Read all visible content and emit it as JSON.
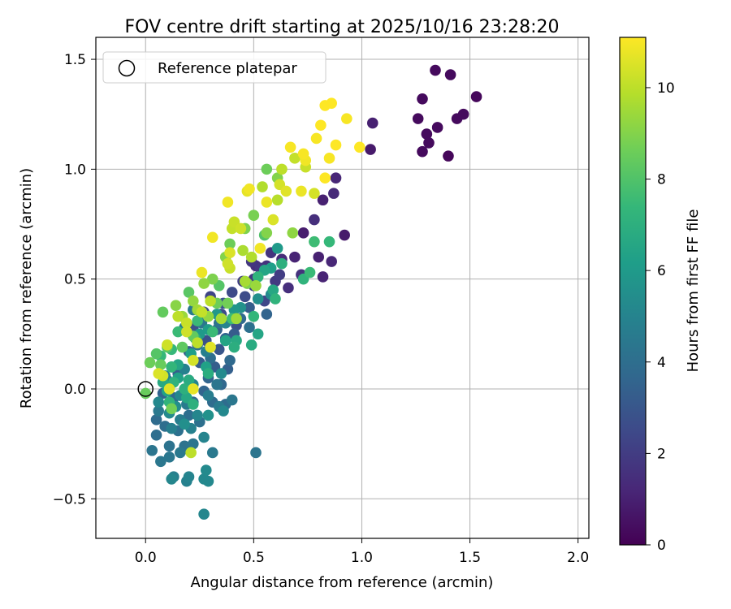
{
  "chart_data": {
    "type": "scatter",
    "title": "FOV centre drift starting at 2025/10/16 23:28:20",
    "xlabel": "Angular distance from reference (arcmin)",
    "ylabel": "Rotation from reference (arcmin)",
    "xlim": [
      -0.23,
      2.05
    ],
    "ylim": [
      -0.68,
      1.6
    ],
    "xticks": [
      0.0,
      0.5,
      1.0,
      1.5,
      2.0
    ],
    "xtick_labels": [
      "0.0",
      "0.5",
      "1.0",
      "1.5",
      "2.0"
    ],
    "yticks": [
      -0.5,
      0.0,
      0.5,
      1.0,
      1.5
    ],
    "ytick_labels": [
      "−0.5",
      "0.0",
      "0.5",
      "1.0",
      "1.5"
    ],
    "grid": true,
    "legend": {
      "location": "upper-left",
      "entries": [
        {
          "label": "Reference platepar",
          "marker": "open-circle"
        }
      ]
    },
    "reference_point": {
      "x": 0.0,
      "y": 0.0
    },
    "colorbar": {
      "label": "Hours from first FF file",
      "colormap": "viridis",
      "range": [
        0,
        11.1
      ],
      "ticks": [
        0,
        2,
        4,
        6,
        8,
        10
      ],
      "tick_labels": [
        "0",
        "2",
        "4",
        "6",
        "8",
        "10"
      ],
      "stops": [
        "#440154",
        "#482878",
        "#3e4989",
        "#31688e",
        "#26828e",
        "#1f9e89",
        "#35b779",
        "#6ece58",
        "#b5de2b",
        "#fde725"
      ]
    },
    "points": [
      {
        "x": 1.34,
        "y": 1.45,
        "c": 0.3
      },
      {
        "x": 1.41,
        "y": 1.43,
        "c": 0.3
      },
      {
        "x": 1.28,
        "y": 1.32,
        "c": 0.3
      },
      {
        "x": 1.53,
        "y": 1.33,
        "c": 0.2
      },
      {
        "x": 1.26,
        "y": 1.23,
        "c": 0.3
      },
      {
        "x": 1.44,
        "y": 1.23,
        "c": 0.3
      },
      {
        "x": 1.47,
        "y": 1.25,
        "c": 0.3
      },
      {
        "x": 1.35,
        "y": 1.19,
        "c": 0.3
      },
      {
        "x": 1.3,
        "y": 1.16,
        "c": 0.3
      },
      {
        "x": 1.31,
        "y": 1.12,
        "c": 0.3
      },
      {
        "x": 1.28,
        "y": 1.08,
        "c": 0.3
      },
      {
        "x": 1.4,
        "y": 1.06,
        "c": 0.2
      },
      {
        "x": 1.05,
        "y": 1.21,
        "c": 1.0
      },
      {
        "x": 1.04,
        "y": 1.09,
        "c": 0.8
      },
      {
        "x": 0.88,
        "y": 0.96,
        "c": 1.2
      },
      {
        "x": 0.82,
        "y": 0.86,
        "c": 1.0
      },
      {
        "x": 0.87,
        "y": 0.89,
        "c": 1.3
      },
      {
        "x": 0.78,
        "y": 0.77,
        "c": 1.5
      },
      {
        "x": 0.92,
        "y": 0.7,
        "c": 0.8
      },
      {
        "x": 0.73,
        "y": 0.71,
        "c": 0.9
      },
      {
        "x": 0.8,
        "y": 0.6,
        "c": 1.0
      },
      {
        "x": 0.86,
        "y": 0.58,
        "c": 1.2
      },
      {
        "x": 0.69,
        "y": 0.6,
        "c": 1.1
      },
      {
        "x": 0.82,
        "y": 0.51,
        "c": 1.1
      },
      {
        "x": 0.63,
        "y": 0.59,
        "c": 1.4
      },
      {
        "x": 0.66,
        "y": 0.46,
        "c": 1.5
      },
      {
        "x": 0.72,
        "y": 0.52,
        "c": 1.6
      },
      {
        "x": 0.51,
        "y": 0.56,
        "c": 1.5
      },
      {
        "x": 0.58,
        "y": 0.62,
        "c": 1.7
      },
      {
        "x": 0.53,
        "y": 0.55,
        "c": 1.8
      },
      {
        "x": 0.6,
        "y": 0.49,
        "c": 1.9
      },
      {
        "x": 0.45,
        "y": 0.49,
        "c": 2.1
      },
      {
        "x": 0.62,
        "y": 0.52,
        "c": 2.0
      },
      {
        "x": 0.55,
        "y": 0.4,
        "c": 2.4
      },
      {
        "x": 0.4,
        "y": 0.44,
        "c": 2.5
      },
      {
        "x": 0.3,
        "y": 0.42,
        "c": 2.3
      },
      {
        "x": 0.27,
        "y": 0.35,
        "c": 2.6
      },
      {
        "x": 0.35,
        "y": 0.34,
        "c": 2.6
      },
      {
        "x": 0.42,
        "y": 0.29,
        "c": 2.7
      },
      {
        "x": 0.22,
        "y": 0.28,
        "c": 2.8
      },
      {
        "x": 0.28,
        "y": 0.22,
        "c": 2.8
      },
      {
        "x": 0.34,
        "y": 0.18,
        "c": 3.0
      },
      {
        "x": 0.2,
        "y": 0.17,
        "c": 3.1
      },
      {
        "x": 0.25,
        "y": 0.12,
        "c": 3.2
      },
      {
        "x": 0.32,
        "y": 0.1,
        "c": 3.3
      },
      {
        "x": 0.38,
        "y": 0.09,
        "c": 3.4
      },
      {
        "x": 0.12,
        "y": 0.1,
        "c": 3.2
      },
      {
        "x": 0.15,
        "y": 0.07,
        "c": 3.3
      },
      {
        "x": 0.1,
        "y": 0.04,
        "c": 3.5
      },
      {
        "x": 0.2,
        "y": 0.04,
        "c": 3.4
      },
      {
        "x": 0.29,
        "y": 0.05,
        "c": 3.6
      },
      {
        "x": 0.27,
        "y": -0.01,
        "c": 3.6
      },
      {
        "x": 0.35,
        "y": 0.02,
        "c": 3.7
      },
      {
        "x": 0.08,
        "y": -0.02,
        "c": 3.6
      },
      {
        "x": 0.13,
        "y": -0.04,
        "c": 3.8
      },
      {
        "x": 0.22,
        "y": -0.06,
        "c": 3.8
      },
      {
        "x": 0.31,
        "y": -0.06,
        "c": 3.9
      },
      {
        "x": 0.37,
        "y": -0.07,
        "c": 3.9
      },
      {
        "x": 0.05,
        "y": -0.14,
        "c": 3.9
      },
      {
        "x": 0.09,
        "y": -0.17,
        "c": 4.0
      },
      {
        "x": 0.15,
        "y": -0.19,
        "c": 4.1
      },
      {
        "x": 0.2,
        "y": -0.12,
        "c": 4.0
      },
      {
        "x": 0.25,
        "y": -0.15,
        "c": 4.1
      },
      {
        "x": 0.05,
        "y": -0.21,
        "c": 4.0
      },
      {
        "x": 0.11,
        "y": -0.26,
        "c": 4.2
      },
      {
        "x": 0.18,
        "y": -0.26,
        "c": 4.2
      },
      {
        "x": 0.22,
        "y": -0.25,
        "c": 4.3
      },
      {
        "x": 0.03,
        "y": -0.28,
        "c": 4.3
      },
      {
        "x": 0.07,
        "y": -0.33,
        "c": 4.4
      },
      {
        "x": 0.11,
        "y": -0.31,
        "c": 4.4
      },
      {
        "x": 0.16,
        "y": -0.29,
        "c": 4.5
      },
      {
        "x": 0.31,
        "y": -0.29,
        "c": 4.5
      },
      {
        "x": 0.51,
        "y": -0.29,
        "c": 4.3
      },
      {
        "x": 0.13,
        "y": -0.4,
        "c": 4.8
      },
      {
        "x": 0.19,
        "y": -0.42,
        "c": 4.9
      },
      {
        "x": 0.2,
        "y": -0.4,
        "c": 5.0
      },
      {
        "x": 0.27,
        "y": -0.41,
        "c": 5.2
      },
      {
        "x": 0.29,
        "y": -0.42,
        "c": 5.2
      },
      {
        "x": 0.12,
        "y": -0.41,
        "c": 5.1
      },
      {
        "x": 0.28,
        "y": -0.37,
        "c": 5.3
      },
      {
        "x": 0.27,
        "y": -0.57,
        "c": 5.1
      },
      {
        "x": 0.5,
        "y": 0.5,
        "c": 1.8
      },
      {
        "x": 0.49,
        "y": 0.58,
        "c": 1.8
      },
      {
        "x": 0.56,
        "y": 0.56,
        "c": 1.6
      },
      {
        "x": 0.5,
        "y": 0.47,
        "c": 2.3
      },
      {
        "x": 0.46,
        "y": 0.42,
        "c": 2.6
      },
      {
        "x": 0.36,
        "y": 0.39,
        "c": 2.9
      },
      {
        "x": 0.33,
        "y": 0.27,
        "c": 3.4
      },
      {
        "x": 0.37,
        "y": 0.23,
        "c": 3.5
      },
      {
        "x": 0.41,
        "y": 0.25,
        "c": 3.2
      },
      {
        "x": 0.39,
        "y": 0.13,
        "c": 3.8
      },
      {
        "x": 0.3,
        "y": 0.14,
        "c": 4.0
      },
      {
        "x": 0.24,
        "y": 0.2,
        "c": 4.2
      },
      {
        "x": 0.33,
        "y": 0.02,
        "c": 4.3
      },
      {
        "x": 0.4,
        "y": -0.05,
        "c": 4.4
      },
      {
        "x": 0.34,
        "y": -0.08,
        "c": 4.6
      },
      {
        "x": 0.29,
        "y": -0.03,
        "c": 4.7
      },
      {
        "x": 0.19,
        "y": -0.07,
        "c": 4.6
      },
      {
        "x": 0.16,
        "y": -0.14,
        "c": 4.7
      },
      {
        "x": 0.12,
        "y": -0.18,
        "c": 4.8
      },
      {
        "x": 0.06,
        "y": -0.1,
        "c": 4.5
      },
      {
        "x": 0.21,
        "y": -0.18,
        "c": 4.9
      },
      {
        "x": 0.27,
        "y": -0.22,
        "c": 5.0
      },
      {
        "x": 0.24,
        "y": -0.12,
        "c": 5.1
      },
      {
        "x": 0.36,
        "y": -0.1,
        "c": 5.2
      },
      {
        "x": 0.48,
        "y": 0.37,
        "c": 3.3
      },
      {
        "x": 0.56,
        "y": 0.34,
        "c": 3.6
      },
      {
        "x": 0.44,
        "y": 0.32,
        "c": 3.8
      },
      {
        "x": 0.48,
        "y": 0.28,
        "c": 4.1
      },
      {
        "x": 0.34,
        "y": 0.3,
        "c": 4.2
      },
      {
        "x": 0.26,
        "y": 0.3,
        "c": 4.4
      },
      {
        "x": 0.22,
        "y": 0.36,
        "c": 4.5
      },
      {
        "x": 0.18,
        "y": 0.28,
        "c": 4.6
      },
      {
        "x": 0.28,
        "y": 0.17,
        "c": 4.8
      },
      {
        "x": 0.18,
        "y": 0.09,
        "c": 4.9
      },
      {
        "x": 0.22,
        "y": 0.02,
        "c": 5.0
      },
      {
        "x": 0.16,
        "y": -0.03,
        "c": 5.2
      },
      {
        "x": 0.09,
        "y": 0.06,
        "c": 5.0
      },
      {
        "x": 0.11,
        "y": -0.11,
        "c": 5.3
      },
      {
        "x": 0.18,
        "y": -0.16,
        "c": 5.5
      },
      {
        "x": 0.14,
        "y": -0.08,
        "c": 5.4
      },
      {
        "x": 0.06,
        "y": -0.06,
        "c": 5.2
      },
      {
        "x": 0.29,
        "y": -0.12,
        "c": 5.6
      },
      {
        "x": 0.35,
        "y": 0.07,
        "c": 5.3
      },
      {
        "x": 0.37,
        "y": 0.3,
        "c": 5.0
      },
      {
        "x": 0.58,
        "y": 0.43,
        "c": 5.3
      },
      {
        "x": 0.52,
        "y": 0.41,
        "c": 5.5
      },
      {
        "x": 0.44,
        "y": 0.37,
        "c": 5.6
      },
      {
        "x": 0.41,
        "y": 0.36,
        "c": 5.8
      },
      {
        "x": 0.33,
        "y": 0.34,
        "c": 5.9
      },
      {
        "x": 0.25,
        "y": 0.25,
        "c": 6.0
      },
      {
        "x": 0.29,
        "y": 0.27,
        "c": 6.1
      },
      {
        "x": 0.21,
        "y": 0.16,
        "c": 6.2
      },
      {
        "x": 0.28,
        "y": 0.1,
        "c": 6.3
      },
      {
        "x": 0.15,
        "y": 0.05,
        "c": 6.3
      },
      {
        "x": 0.1,
        "y": -0.01,
        "c": 6.4
      },
      {
        "x": 0.15,
        "y": 0.11,
        "c": 6.5
      },
      {
        "x": 0.37,
        "y": 0.22,
        "c": 6.5
      },
      {
        "x": 0.19,
        "y": -0.04,
        "c": 6.6
      },
      {
        "x": 0.08,
        "y": 0.03,
        "c": 6.7
      },
      {
        "x": 0.61,
        "y": 0.64,
        "c": 6.0
      },
      {
        "x": 0.58,
        "y": 0.55,
        "c": 6.2
      },
      {
        "x": 0.55,
        "y": 0.54,
        "c": 6.5
      },
      {
        "x": 0.59,
        "y": 0.45,
        "c": 6.6
      },
      {
        "x": 0.52,
        "y": 0.25,
        "c": 6.5
      },
      {
        "x": 0.49,
        "y": 0.2,
        "c": 6.8
      },
      {
        "x": 0.42,
        "y": 0.22,
        "c": 6.7
      },
      {
        "x": 0.41,
        "y": 0.19,
        "c": 6.9
      },
      {
        "x": 0.23,
        "y": 0.23,
        "c": 6.8
      },
      {
        "x": 0.29,
        "y": 0.07,
        "c": 6.9
      },
      {
        "x": 0.2,
        "y": 0.04,
        "c": 6.8
      },
      {
        "x": 0.18,
        "y": 0.0,
        "c": 7.0
      },
      {
        "x": 0.13,
        "y": 0.03,
        "c": 7.1
      },
      {
        "x": 0.22,
        "y": -0.07,
        "c": 7.0
      },
      {
        "x": 0.11,
        "y": -0.06,
        "c": 7.2
      },
      {
        "x": 0.12,
        "y": 0.1,
        "c": 7.3
      },
      {
        "x": 0.07,
        "y": 0.15,
        "c": 7.4
      },
      {
        "x": 0.12,
        "y": 0.18,
        "c": 7.4
      },
      {
        "x": 0.15,
        "y": 0.26,
        "c": 7.5
      },
      {
        "x": 0.24,
        "y": 0.31,
        "c": 7.5
      },
      {
        "x": 0.31,
        "y": 0.26,
        "c": 7.5
      },
      {
        "x": 0.4,
        "y": 0.32,
        "c": 7.6
      },
      {
        "x": 0.5,
        "y": 0.33,
        "c": 7.3
      },
      {
        "x": 0.52,
        "y": 0.51,
        "c": 7.2
      },
      {
        "x": 0.6,
        "y": 0.41,
        "c": 7.2
      },
      {
        "x": 0.63,
        "y": 0.57,
        "c": 7.0
      },
      {
        "x": 0.73,
        "y": 0.5,
        "c": 7.2
      },
      {
        "x": 0.76,
        "y": 0.53,
        "c": 7.5
      },
      {
        "x": 0.78,
        "y": 0.67,
        "c": 7.6
      },
      {
        "x": 0.85,
        "y": 0.67,
        "c": 7.4
      },
      {
        "x": 0.55,
        "y": 0.7,
        "c": 8.0
      },
      {
        "x": 0.34,
        "y": 0.47,
        "c": 8.1
      },
      {
        "x": 0.2,
        "y": 0.44,
        "c": 8.2
      },
      {
        "x": 0.08,
        "y": 0.35,
        "c": 8.4
      },
      {
        "x": 0.1,
        "y": 0.19,
        "c": 8.2
      },
      {
        "x": 0.07,
        "y": 0.11,
        "c": 8.5
      },
      {
        "x": 0.05,
        "y": 0.16,
        "c": 8.1
      },
      {
        "x": 0.02,
        "y": 0.12,
        "c": 8.6
      },
      {
        "x": 0.0,
        "y": -0.02,
        "c": 8.5
      },
      {
        "x": 0.12,
        "y": -0.09,
        "c": 8.7
      },
      {
        "x": 0.17,
        "y": 0.19,
        "c": 8.3
      },
      {
        "x": 0.22,
        "y": 0.24,
        "c": 8.4
      },
      {
        "x": 0.33,
        "y": 0.39,
        "c": 8.6
      },
      {
        "x": 0.38,
        "y": 0.39,
        "c": 8.7
      },
      {
        "x": 0.39,
        "y": 0.66,
        "c": 8.6
      },
      {
        "x": 0.5,
        "y": 0.79,
        "c": 8.8
      },
      {
        "x": 0.46,
        "y": 0.73,
        "c": 8.9
      },
      {
        "x": 0.56,
        "y": 1.0,
        "c": 8.6
      },
      {
        "x": 0.47,
        "y": 0.48,
        "c": 8.9
      },
      {
        "x": 0.56,
        "y": 0.71,
        "c": 9.0
      },
      {
        "x": 0.61,
        "y": 0.96,
        "c": 9.0
      },
      {
        "x": 0.68,
        "y": 0.71,
        "c": 9.2
      },
      {
        "x": 0.37,
        "y": 0.6,
        "c": 9.0
      },
      {
        "x": 0.27,
        "y": 0.48,
        "c": 9.2
      },
      {
        "x": 0.31,
        "y": 0.5,
        "c": 8.9
      },
      {
        "x": 0.22,
        "y": 0.4,
        "c": 9.3
      },
      {
        "x": 0.14,
        "y": 0.38,
        "c": 9.1
      },
      {
        "x": 0.17,
        "y": 0.33,
        "c": 9.4
      },
      {
        "x": 0.24,
        "y": 0.36,
        "c": 9.5
      },
      {
        "x": 0.29,
        "y": 0.33,
        "c": 9.3
      },
      {
        "x": 0.35,
        "y": 0.32,
        "c": 9.6
      },
      {
        "x": 0.42,
        "y": 0.32,
        "c": 9.5
      },
      {
        "x": 0.46,
        "y": 0.49,
        "c": 9.6
      },
      {
        "x": 0.51,
        "y": 0.47,
        "c": 9.4
      },
      {
        "x": 0.45,
        "y": 0.63,
        "c": 9.7
      },
      {
        "x": 0.49,
        "y": 0.6,
        "c": 9.8
      },
      {
        "x": 0.54,
        "y": 0.92,
        "c": 9.8
      },
      {
        "x": 0.61,
        "y": 0.86,
        "c": 9.9
      },
      {
        "x": 0.63,
        "y": 1.0,
        "c": 10.0
      },
      {
        "x": 0.69,
        "y": 1.05,
        "c": 10.1
      },
      {
        "x": 0.74,
        "y": 1.01,
        "c": 10.2
      },
      {
        "x": 0.78,
        "y": 0.89,
        "c": 10.4
      },
      {
        "x": 0.4,
        "y": 0.73,
        "c": 10.1
      },
      {
        "x": 0.41,
        "y": 0.76,
        "c": 10.2
      },
      {
        "x": 0.44,
        "y": 0.73,
        "c": 10.3
      },
      {
        "x": 0.39,
        "y": 0.62,
        "c": 10.5
      },
      {
        "x": 0.38,
        "y": 0.57,
        "c": 10.3
      },
      {
        "x": 0.39,
        "y": 0.55,
        "c": 10.2
      },
      {
        "x": 0.3,
        "y": 0.4,
        "c": 10.0
      },
      {
        "x": 0.26,
        "y": 0.35,
        "c": 10.1
      },
      {
        "x": 0.19,
        "y": 0.3,
        "c": 10.2
      },
      {
        "x": 0.15,
        "y": 0.33,
        "c": 10.0
      },
      {
        "x": 0.19,
        "y": 0.26,
        "c": 10.3
      },
      {
        "x": 0.24,
        "y": 0.21,
        "c": 10.0
      },
      {
        "x": 0.22,
        "y": 0.13,
        "c": 10.4
      },
      {
        "x": 0.1,
        "y": 0.2,
        "c": 10.3
      },
      {
        "x": 0.06,
        "y": 0.07,
        "c": 10.5
      },
      {
        "x": 0.08,
        "y": 0.06,
        "c": 10.4
      },
      {
        "x": 0.11,
        "y": 0.0,
        "c": 10.6
      },
      {
        "x": 0.22,
        "y": 0.0,
        "c": 10.7
      },
      {
        "x": 0.21,
        "y": -0.29,
        "c": 10.0
      },
      {
        "x": 0.3,
        "y": 0.19,
        "c": 10.6
      },
      {
        "x": 0.26,
        "y": 0.53,
        "c": 10.8
      },
      {
        "x": 0.31,
        "y": 0.69,
        "c": 10.9
      },
      {
        "x": 0.38,
        "y": 0.85,
        "c": 10.9
      },
      {
        "x": 0.47,
        "y": 0.9,
        "c": 10.7
      },
      {
        "x": 0.53,
        "y": 0.64,
        "c": 10.9
      },
      {
        "x": 0.56,
        "y": 0.85,
        "c": 10.8
      },
      {
        "x": 0.48,
        "y": 0.91,
        "c": 10.9
      },
      {
        "x": 0.67,
        "y": 1.1,
        "c": 11.0
      },
      {
        "x": 0.73,
        "y": 1.07,
        "c": 11.0
      },
      {
        "x": 0.74,
        "y": 1.04,
        "c": 10.9
      },
      {
        "x": 0.72,
        "y": 0.9,
        "c": 10.8
      },
      {
        "x": 0.83,
        "y": 0.96,
        "c": 11.1
      },
      {
        "x": 0.85,
        "y": 1.05,
        "c": 11.0
      },
      {
        "x": 0.88,
        "y": 1.11,
        "c": 11.1
      },
      {
        "x": 0.79,
        "y": 1.14,
        "c": 11.0
      },
      {
        "x": 0.81,
        "y": 1.2,
        "c": 11.1
      },
      {
        "x": 0.83,
        "y": 1.29,
        "c": 11.1
      },
      {
        "x": 0.86,
        "y": 1.3,
        "c": 11.1
      },
      {
        "x": 0.93,
        "y": 1.23,
        "c": 11.0
      },
      {
        "x": 0.99,
        "y": 1.1,
        "c": 11.1
      },
      {
        "x": 0.65,
        "y": 0.9,
        "c": 10.6
      },
      {
        "x": 0.59,
        "y": 0.77,
        "c": 10.5
      },
      {
        "x": 0.62,
        "y": 0.93,
        "c": 10.4
      }
    ]
  }
}
